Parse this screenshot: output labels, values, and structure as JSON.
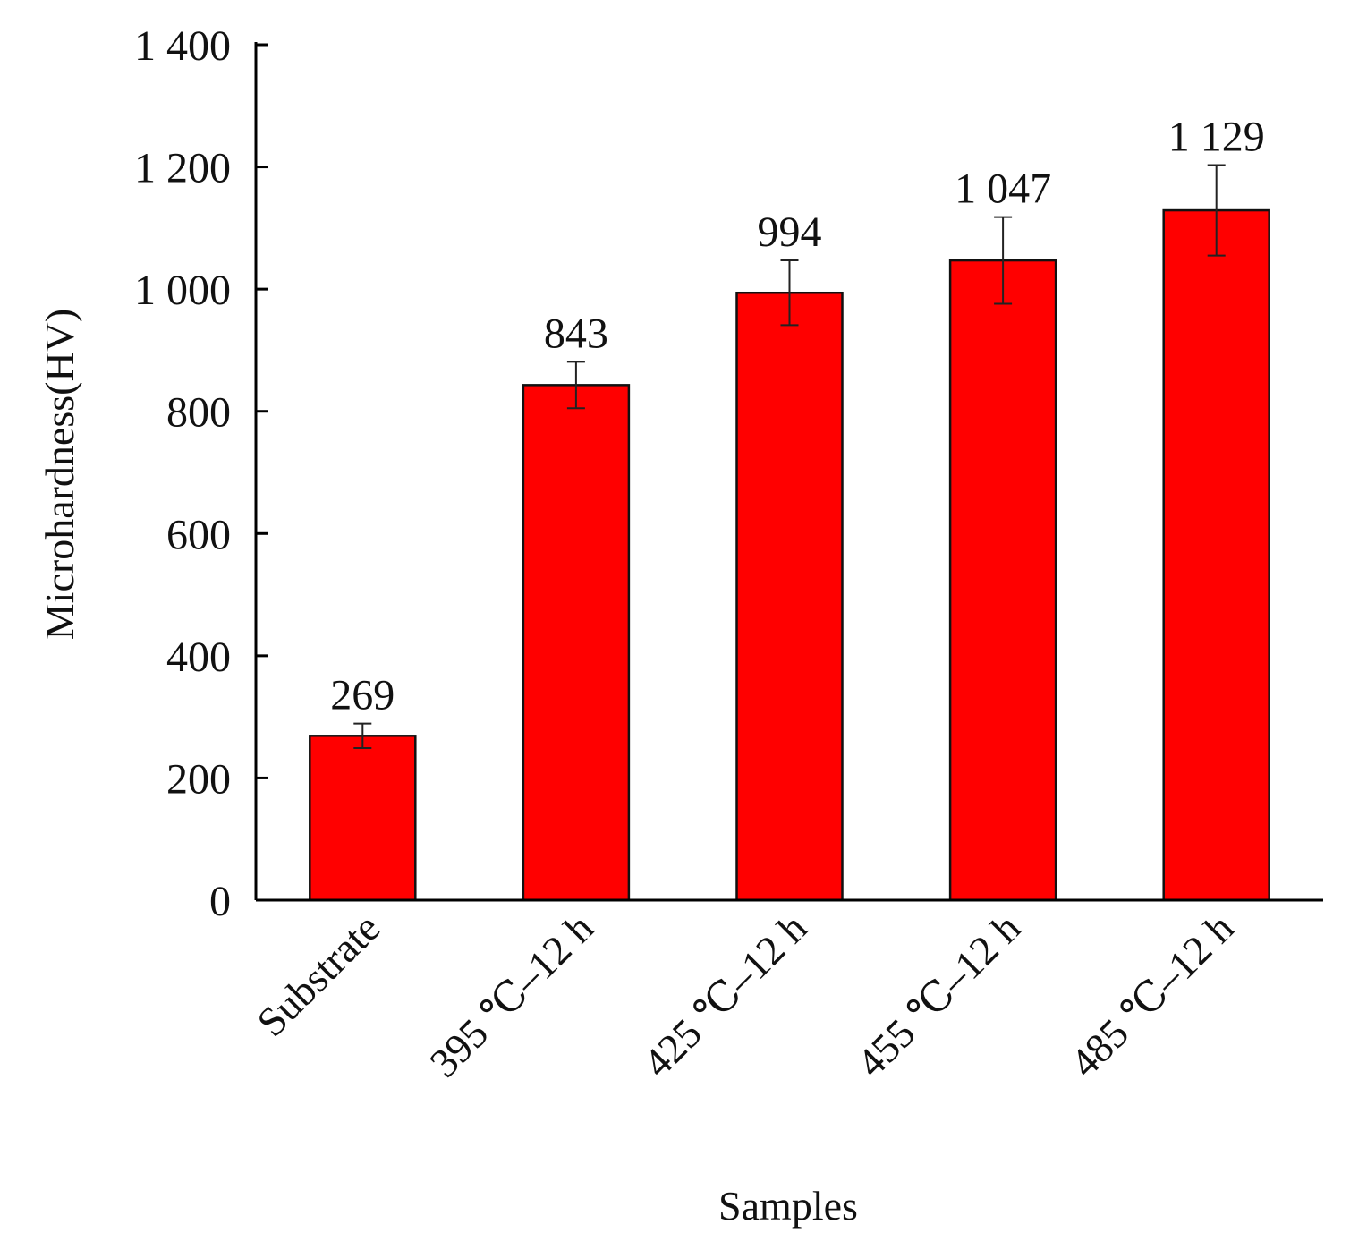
{
  "chart_data": {
    "type": "bar",
    "categories": [
      "Substrate",
      "395 ℃–12 h",
      "425 ℃–12 h",
      "455 ℃–12 h",
      "485 ℃–12 h"
    ],
    "values": [
      269,
      843,
      994,
      1047,
      1129
    ],
    "value_labels": [
      "269",
      "843",
      "994",
      "1 047",
      "1 129"
    ],
    "error_bars": [
      {
        "low": 249,
        "high": 289
      },
      {
        "low": 805,
        "high": 881
      },
      {
        "low": 941,
        "high": 1047
      },
      {
        "low": 976,
        "high": 1118
      },
      {
        "low": 1055,
        "high": 1203
      }
    ],
    "xlabel": "Samples",
    "ylabel": "Microhardness(HV)",
    "ylim": [
      0,
      1400
    ],
    "yticks": [
      0,
      200,
      400,
      600,
      800,
      1000,
      1200,
      1400
    ],
    "ytick_labels": [
      "0",
      "200",
      "400",
      "600",
      "800",
      "1 000",
      "1 200",
      "1 400"
    ],
    "bar_color": "#ff0000",
    "grid": false,
    "legend": "none"
  }
}
